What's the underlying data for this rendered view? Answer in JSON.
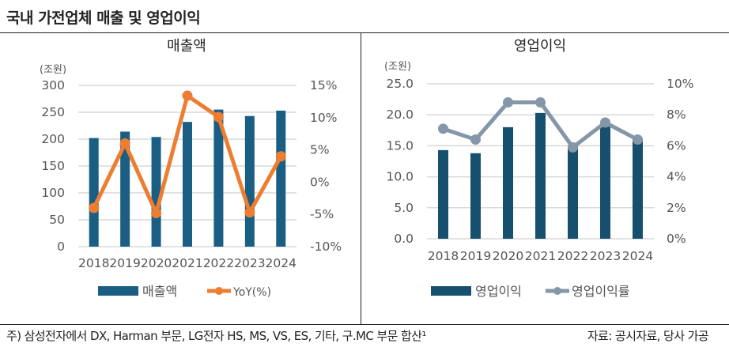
{
  "title": "국내 가전업체 매출 및 영업이익",
  "footnote": "주) 삼성전자에서 DX, Harman 부문, LG전자 HS, MS, VS, ES, 기타, 구.MC 부문 합산¹",
  "source": "자료: 공시자료, 당사 가공",
  "chart_data": [
    {
      "type": "bar+line",
      "title": "매출액",
      "ylabel": "(조원)",
      "categories": [
        "2018",
        "2019",
        "2020",
        "2021",
        "2022",
        "2023",
        "2024"
      ],
      "ylim": [
        0,
        300
      ],
      "yticks": [
        "0",
        "50",
        "100",
        "150",
        "200",
        "250",
        "300"
      ],
      "y2lim": [
        -10,
        15
      ],
      "y2ticks": [
        "-10%",
        "-5%",
        "0%",
        "5%",
        "10%",
        "15%"
      ],
      "grid": true,
      "legend": "bottom",
      "series": [
        {
          "name": "매출액",
          "type": "bar",
          "axis": "left",
          "color": "#1a5e83",
          "values": [
            202,
            214,
            204,
            232,
            255,
            243,
            253
          ]
        },
        {
          "name": "YoY(%)",
          "type": "line",
          "axis": "right",
          "color": "#ed7d31",
          "values": [
            -4.0,
            6.0,
            -4.8,
            13.4,
            10.1,
            -4.7,
            4.0
          ]
        }
      ]
    },
    {
      "type": "bar+line",
      "title": "영업이익",
      "ylabel": "(조원)",
      "categories": [
        "2018",
        "2019",
        "2020",
        "2021",
        "2022",
        "2023",
        "2024"
      ],
      "ylim": [
        0,
        25
      ],
      "yticks": [
        "0.0",
        "5.0",
        "10.0",
        "15.0",
        "20.0",
        "25.0"
      ],
      "y2lim": [
        0,
        10
      ],
      "y2ticks": [
        "0%",
        "2%",
        "4%",
        "6%",
        "8%",
        "10%"
      ],
      "grid": true,
      "legend": "bottom",
      "series": [
        {
          "name": "영업이익",
          "type": "bar",
          "axis": "left",
          "color": "#16506e",
          "values": [
            14.3,
            13.8,
            18.0,
            20.3,
            15.0,
            18.2,
            16.2
          ]
        },
        {
          "name": "영업이익률",
          "type": "line",
          "axis": "right",
          "color": "#8497a8",
          "values": [
            7.1,
            6.4,
            8.8,
            8.8,
            5.9,
            7.5,
            6.4
          ]
        }
      ]
    }
  ]
}
